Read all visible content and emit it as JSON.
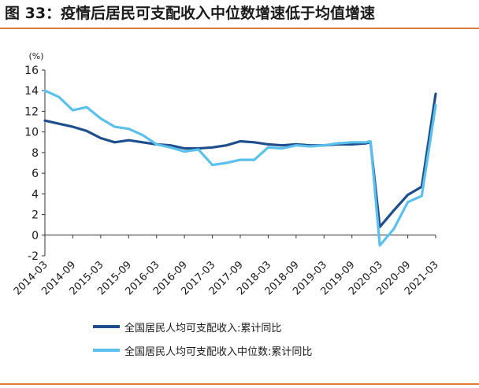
{
  "title": "图 33：疫情后居民可支配收入中位数增速低于均值增速",
  "colors": {
    "accent": "#e07a3a",
    "series_dark": "#1f4e8c",
    "series_light": "#5bc0eb"
  },
  "chart_data": {
    "type": "line",
    "yunit": "(%)",
    "ylim": [
      -2,
      16
    ],
    "yticks": [
      -2,
      0,
      2,
      4,
      6,
      8,
      10,
      12,
      14,
      16
    ],
    "xticks": [
      "2014-03",
      "2014-09",
      "2015-03",
      "2015-09",
      "2016-03",
      "2016-09",
      "2017-03",
      "2017-09",
      "2018-03",
      "2018-09",
      "2019-03",
      "2019-09",
      "2020-03",
      "2020-09",
      "2021-03"
    ],
    "grid": false,
    "legend_position": "bottom",
    "series": [
      {
        "name": "全国居民人均可支配收入:累计同比",
        "color": "#1f4e8c",
        "points": [
          [
            "2014-03",
            11.1
          ],
          [
            "2014-06",
            10.8
          ],
          [
            "2014-09",
            10.5
          ],
          [
            "2014-12",
            10.1
          ],
          [
            "2015-03",
            9.4
          ],
          [
            "2015-06",
            9.0
          ],
          [
            "2015-09",
            9.2
          ],
          [
            "2015-12",
            9.0
          ],
          [
            "2016-03",
            8.8
          ],
          [
            "2016-06",
            8.7
          ],
          [
            "2016-09",
            8.4
          ],
          [
            "2016-12",
            8.4
          ],
          [
            "2017-03",
            8.5
          ],
          [
            "2017-06",
            8.7
          ],
          [
            "2017-09",
            9.1
          ],
          [
            "2017-12",
            9.0
          ],
          [
            "2018-03",
            8.8
          ],
          [
            "2018-06",
            8.7
          ],
          [
            "2018-09",
            8.8
          ],
          [
            "2018-12",
            8.7
          ],
          [
            "2019-03",
            8.7
          ],
          [
            "2019-06",
            8.8
          ],
          [
            "2019-09",
            8.8
          ],
          [
            "2019-12",
            8.9
          ],
          [
            "2020-01",
            9.0
          ],
          [
            "2020-03",
            0.8
          ],
          [
            "2020-06",
            2.4
          ],
          [
            "2020-09",
            3.9
          ],
          [
            "2020-12",
            4.7
          ],
          [
            "2021-03",
            13.7
          ]
        ]
      },
      {
        "name": "全国居民人均可支配收入中位数:累计同比",
        "color": "#5bc0eb",
        "points": [
          [
            "2014-03",
            14.0
          ],
          [
            "2014-06",
            13.4
          ],
          [
            "2014-09",
            12.1
          ],
          [
            "2014-12",
            12.4
          ],
          [
            "2015-03",
            11.3
          ],
          [
            "2015-06",
            10.5
          ],
          [
            "2015-09",
            10.3
          ],
          [
            "2015-12",
            9.7
          ],
          [
            "2016-03",
            8.8
          ],
          [
            "2016-06",
            8.5
          ],
          [
            "2016-09",
            8.1
          ],
          [
            "2016-12",
            8.3
          ],
          [
            "2017-03",
            6.8
          ],
          [
            "2017-06",
            7.0
          ],
          [
            "2017-09",
            7.3
          ],
          [
            "2017-12",
            7.3
          ],
          [
            "2018-03",
            8.5
          ],
          [
            "2018-06",
            8.4
          ],
          [
            "2018-09",
            8.7
          ],
          [
            "2018-12",
            8.6
          ],
          [
            "2019-03",
            8.7
          ],
          [
            "2019-06",
            8.9
          ],
          [
            "2019-09",
            9.0
          ],
          [
            "2019-12",
            9.0
          ],
          [
            "2020-01",
            9.1
          ],
          [
            "2020-03",
            -1.0
          ],
          [
            "2020-06",
            0.6
          ],
          [
            "2020-09",
            3.2
          ],
          [
            "2020-12",
            3.8
          ],
          [
            "2021-03",
            12.6
          ]
        ]
      }
    ]
  }
}
